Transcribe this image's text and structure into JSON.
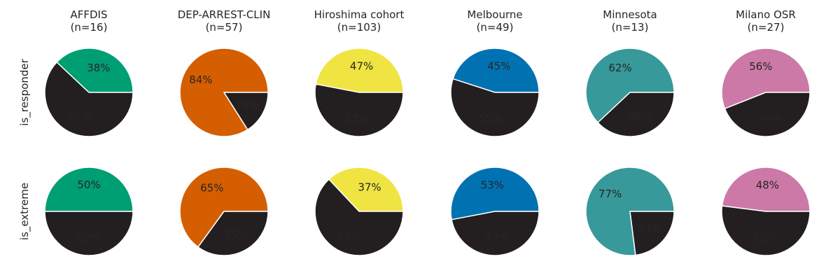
{
  "chart_data": {
    "type": "pie",
    "rows": [
      "is_responder",
      "is_extreme"
    ],
    "negative_color": "#231f20",
    "columns": [
      {
        "name": "AFFDIS",
        "n_label": "(n=16)",
        "color": "#009e73"
      },
      {
        "name": "DEP-ARREST-CLIN",
        "n_label": "(n=57)",
        "color": "#d55e00"
      },
      {
        "name": "Hiroshima cohort",
        "n_label": "(n=103)",
        "color": "#f0e442"
      },
      {
        "name": "Melbourne",
        "n_label": "(n=49)",
        "color": "#0072b2"
      },
      {
        "name": "Minnesota",
        "n_label": "(n=13)",
        "color": "#37999a"
      },
      {
        "name": "Milano OSR",
        "n_label": "(n=27)",
        "color": "#cc79a7"
      }
    ],
    "values": {
      "is_responder": [
        {
          "positive": 38,
          "negative": 62
        },
        {
          "positive": 84,
          "negative": 16
        },
        {
          "positive": 47,
          "negative": 53
        },
        {
          "positive": 45,
          "negative": 55
        },
        {
          "positive": 62,
          "negative": 38
        },
        {
          "positive": 56,
          "negative": 44
        }
      ],
      "is_extreme": [
        {
          "positive": 50,
          "negative": 50
        },
        {
          "positive": 65,
          "negative": 35
        },
        {
          "positive": 37,
          "negative": 63
        },
        {
          "positive": 53,
          "negative": 47
        },
        {
          "positive": 77,
          "negative": 23
        },
        {
          "positive": 48,
          "negative": 52
        }
      ]
    },
    "percent_suffix": "%"
  }
}
